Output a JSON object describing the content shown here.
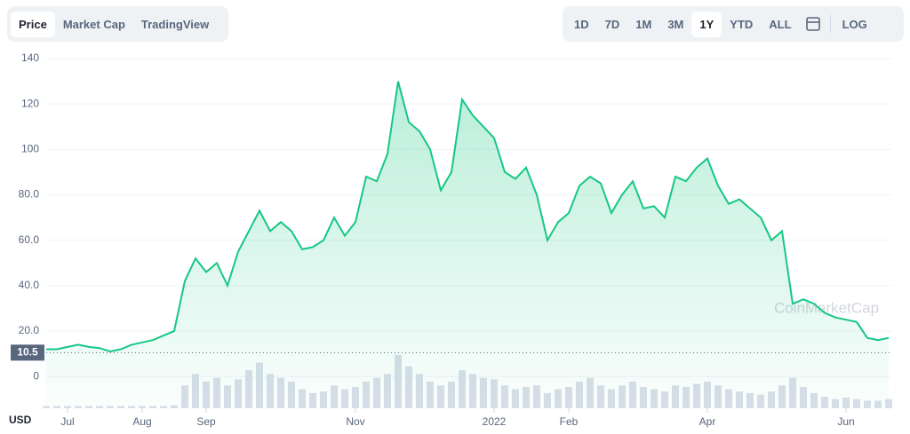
{
  "tabs": [
    "Price",
    "Market Cap",
    "TradingView"
  ],
  "ranges": [
    "1D",
    "7D",
    "1M",
    "3M",
    "1Y",
    "YTD",
    "ALL"
  ],
  "scale_button": "LOG",
  "currency": "USD",
  "watermark": "CoinMarketCap",
  "chart_data": {
    "type": "area",
    "categories": [
      null,
      null,
      "Jul",
      null,
      null,
      null,
      null,
      null,
      null,
      "Aug",
      null,
      null,
      null,
      null,
      null,
      "Sep",
      null,
      null,
      null,
      null,
      null,
      null,
      null,
      null,
      null,
      null,
      null,
      null,
      null,
      "Nov",
      null,
      null,
      null,
      null,
      null,
      null,
      null,
      null,
      null,
      null,
      null,
      null,
      "2022",
      null,
      null,
      null,
      null,
      null,
      null,
      "Feb",
      null,
      null,
      null,
      null,
      null,
      null,
      null,
      null,
      null,
      null,
      null,
      null,
      "Apr",
      null,
      null,
      null,
      null,
      null,
      null,
      null,
      null,
      null,
      null,
      null,
      null,
      "Jun",
      null,
      null,
      null,
      null
    ],
    "values": [
      12,
      12,
      13,
      14,
      13,
      12.5,
      11,
      12,
      14,
      15,
      16,
      18,
      20,
      42,
      52,
      46,
      50,
      40,
      55,
      64,
      73,
      64,
      68,
      64,
      56,
      57,
      60,
      70,
      62,
      68,
      88,
      86,
      98,
      130,
      112,
      108,
      100,
      82,
      90,
      122,
      115,
      110,
      105,
      90,
      87,
      92,
      80,
      60,
      68,
      72,
      84,
      88,
      85,
      72,
      80,
      86,
      74,
      75,
      70,
      88,
      86,
      92,
      96,
      84,
      76,
      78,
      74,
      70,
      60,
      64,
      32,
      34,
      32,
      28,
      26,
      25,
      24,
      17,
      16,
      17
    ],
    "volume": [
      3,
      3,
      3,
      3,
      3,
      3,
      3,
      3,
      3,
      3,
      3,
      3,
      4,
      30,
      45,
      35,
      40,
      30,
      38,
      50,
      60,
      45,
      40,
      35,
      25,
      20,
      22,
      30,
      25,
      28,
      35,
      40,
      45,
      70,
      55,
      45,
      35,
      30,
      35,
      50,
      45,
      40,
      38,
      30,
      25,
      28,
      30,
      20,
      25,
      28,
      35,
      40,
      30,
      25,
      30,
      35,
      28,
      25,
      22,
      30,
      28,
      32,
      35,
      30,
      25,
      22,
      20,
      18,
      22,
      30,
      40,
      28,
      20,
      15,
      12,
      14,
      12,
      10,
      10,
      12
    ],
    "color": "#16c784",
    "ylim": [
      -14,
      140
    ],
    "yticks": [
      0,
      {
        "value": 20,
        "label": "20.0"
      },
      {
        "value": 40,
        "label": "40.0"
      },
      {
        "value": 60,
        "label": "60.0"
      },
      {
        "value": 80,
        "label": "80.0"
      },
      100,
      120,
      140
    ],
    "current_price": 10.5,
    "grid": true
  }
}
